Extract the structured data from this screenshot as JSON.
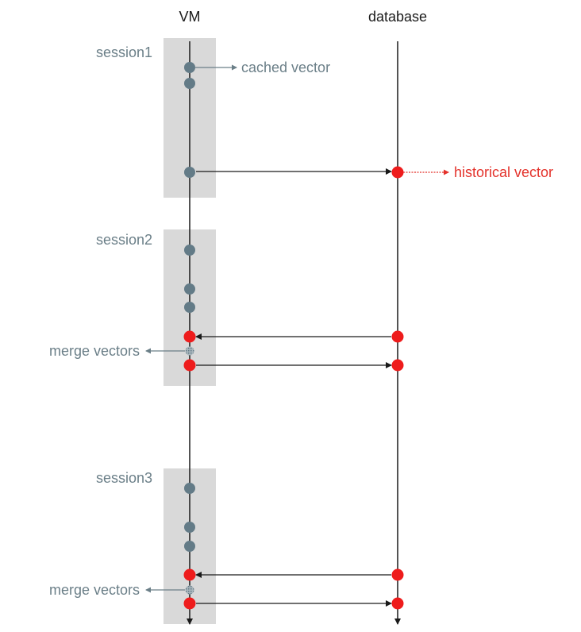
{
  "headers": {
    "vm": "VM",
    "database": "database"
  },
  "sessions": [
    {
      "label": "session1"
    },
    {
      "label": "session2"
    },
    {
      "label": "session3"
    }
  ],
  "annotations": {
    "cached_vector": "cached vector",
    "historical_vector": "historical vector",
    "merge_vectors_1": "merge vectors",
    "merge_vectors_2": "merge vectors"
  },
  "colors": {
    "session_fill": "#d9d9d9",
    "line": "#1a1a1a",
    "cached_dot": "#637b87",
    "historical_dot": "#ee1c1c",
    "merge_dot": "#8a9aa2",
    "annotation_gray": "#6b7f88",
    "annotation_red": "#e4322b"
  }
}
